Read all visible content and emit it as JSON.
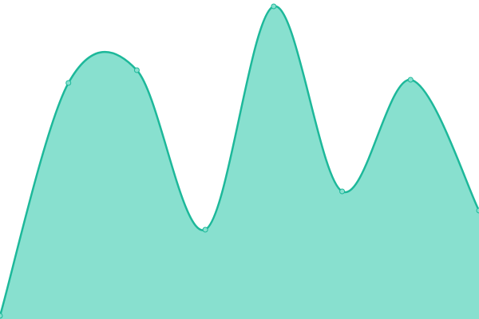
{
  "chart_data": {
    "type": "area",
    "values": [
      1,
      74,
      78,
      28,
      98,
      40,
      75,
      34
    ],
    "ylim": [
      0,
      100
    ],
    "color": "#1db89a",
    "fill": "#88e0cf"
  }
}
